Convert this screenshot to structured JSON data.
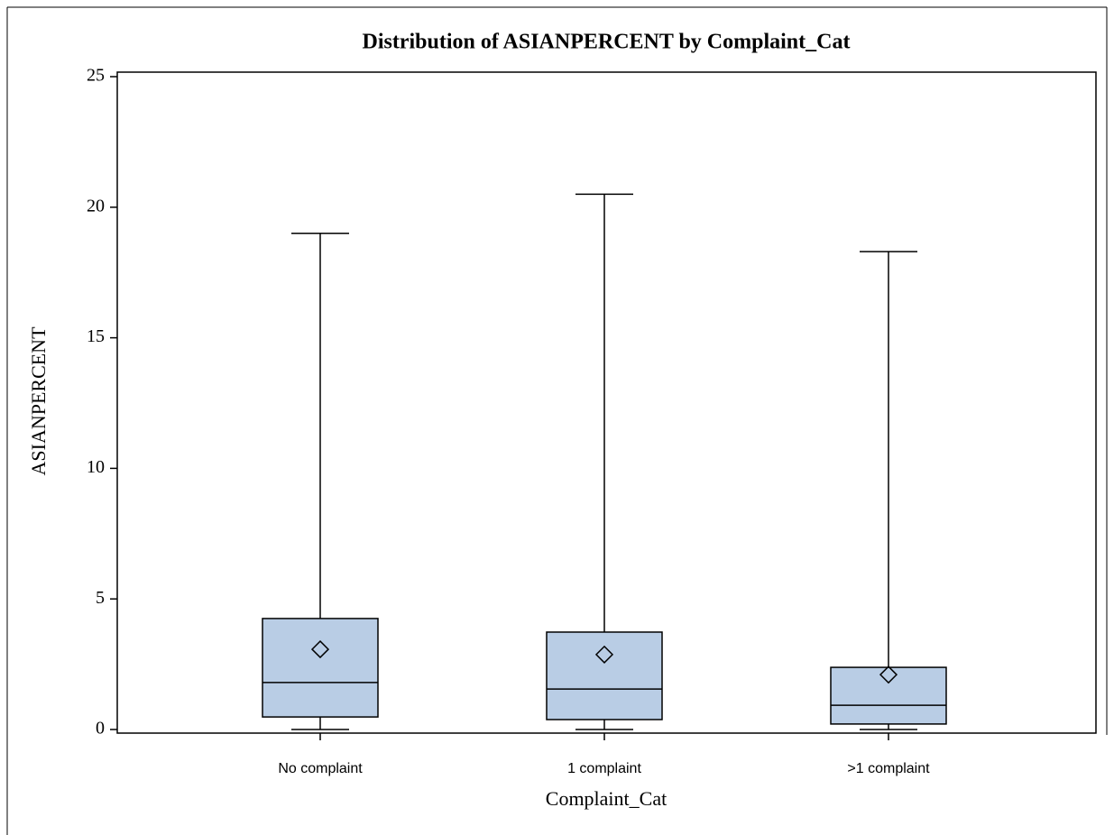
{
  "chart_data": {
    "type": "box",
    "title": "Distribution of ASIANPERCENT by Complaint_Cat",
    "x_label": "Complaint_Cat",
    "y_label": "ASIANPERCENT",
    "categories": [
      "No complaint",
      "1 complaint",
      ">1 complaint"
    ],
    "min": [
      0,
      0,
      0
    ],
    "q1": [
      0.48,
      0.38,
      0.21
    ],
    "median": [
      1.8,
      1.55,
      0.93
    ],
    "q3": [
      4.25,
      3.73,
      2.38
    ],
    "max": [
      19.0,
      20.5,
      18.3
    ],
    "mean": [
      3.07,
      2.87,
      2.1
    ],
    "color": "#b9cde5",
    "ylim": [
      0,
      25
    ],
    "yticks": [
      0,
      5,
      10,
      15,
      20,
      25
    ],
    "grid": false
  }
}
